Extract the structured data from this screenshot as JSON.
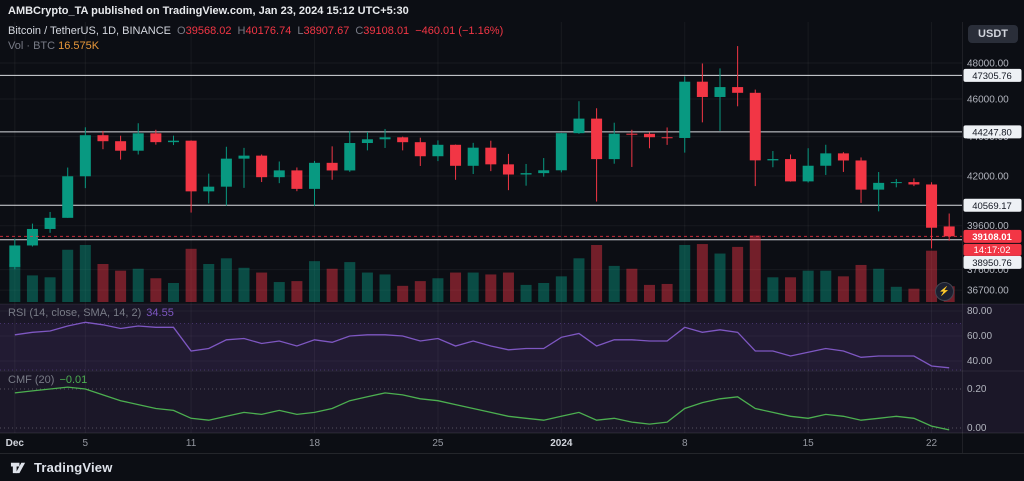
{
  "header": {
    "attribution": "AMBCrypto_TA published on TradingView.com, Jan 23, 2024 15:12 UTC+5:30"
  },
  "toolbar": {
    "currency": "USDT"
  },
  "legend": {
    "symbol": "Bitcoin / TetherUS, 1D, BINANCE",
    "o_label": "O",
    "o": "39568.02",
    "h_label": "H",
    "h": "40176.74",
    "l_label": "L",
    "l": "38907.67",
    "c_label": "C",
    "c": "39108.01",
    "change": "−460.01 (−1.16%)",
    "volume_label": "Vol · BTC",
    "volume_value": "16.575K",
    "rsi_label": "RSI (14, close, SMA, 14, 2)",
    "rsi_value": "34.55",
    "cmf_label": "CMF (20)",
    "cmf_value": "−0.01"
  },
  "footer": {
    "brand": "TradingView"
  },
  "colors": {
    "up": "#089981",
    "down": "#f23645",
    "rsi_line": "#7e57c2",
    "cmf_line": "#4caf50",
    "volume_value": "#e8983a",
    "level_line": "#eef1f5"
  },
  "chart_data": {
    "type": "candlestick",
    "title": "Bitcoin / TetherUS, 1D, BINANCE",
    "scale": "log",
    "ylim": [
      35400,
      49100
    ],
    "y_ticks": [
      48000,
      46000,
      44000,
      42000,
      39600,
      37600,
      36700
    ],
    "levels": [
      47305.76,
      44247.8,
      40569.17,
      38950.76
    ],
    "last_price": 39108.01,
    "countdown": "14:17:02",
    "x_ticks": [
      {
        "label": "Dec",
        "index": 0,
        "major": true
      },
      {
        "label": "5",
        "index": 4,
        "major": false
      },
      {
        "label": "11",
        "index": 10,
        "major": false
      },
      {
        "label": "18",
        "index": 17,
        "major": false
      },
      {
        "label": "25",
        "index": 24,
        "major": false
      },
      {
        "label": "2024",
        "index": 31,
        "major": true
      },
      {
        "label": "8",
        "index": 38,
        "major": false
      },
      {
        "label": "15",
        "index": 45,
        "major": false
      },
      {
        "label": "22",
        "index": 52,
        "major": false
      }
    ],
    "dates": [
      "Dec 1",
      "Dec 2",
      "Dec 3",
      "Dec 4",
      "Dec 5",
      "Dec 6",
      "Dec 7",
      "Dec 8",
      "Dec 9",
      "Dec 10",
      "Dec 11",
      "Dec 12",
      "Dec 13",
      "Dec 14",
      "Dec 15",
      "Dec 16",
      "Dec 17",
      "Dec 18",
      "Dec 19",
      "Dec 20",
      "Dec 21",
      "Dec 22",
      "Dec 23",
      "Dec 24",
      "Dec 25",
      "Dec 26",
      "Dec 27",
      "Dec 28",
      "Dec 29",
      "Dec 30",
      "Dec 31",
      "Jan 1",
      "Jan 2",
      "Jan 3",
      "Jan 4",
      "Jan 5",
      "Jan 6",
      "Jan 7",
      "Jan 8",
      "Jan 9",
      "Jan 10",
      "Jan 11",
      "Jan 12",
      "Jan 13",
      "Jan 14",
      "Jan 15",
      "Jan 16",
      "Jan 17",
      "Jan 18",
      "Jan 19",
      "Jan 20",
      "Jan 21",
      "Jan 22",
      "Jan 23"
    ],
    "open": [
      37718,
      38688,
      39450,
      39972,
      41985,
      44073,
      43762,
      43273,
      44171,
      43713,
      43789,
      41243,
      41472,
      42869,
      43022,
      41940,
      42278,
      41364,
      42657,
      42275,
      43668,
      43861,
      43964,
      43711,
      42991,
      43576,
      42508,
      43428,
      42581,
      42072,
      42141,
      42283,
      44179,
      44946,
      42845,
      44151,
      44145,
      43968,
      43929,
      46951,
      46110,
      46653,
      46338,
      42782,
      42847,
      41732,
      42511,
      43137,
      42776,
      41327,
      41659,
      41696,
      41580,
      39568.02
    ],
    "high": [
      38999,
      39700,
      40250,
      42420,
      44488,
      44297,
      44047,
      44700,
      44358,
      44049,
      43804,
      42115,
      43475,
      43420,
      43080,
      42724,
      42424,
      42755,
      43497,
      44283,
      44242,
      44399,
      44000,
      43945,
      43804,
      43592,
      43677,
      43787,
      43111,
      42600,
      42899,
      44184,
      45879,
      45500,
      44729,
      44357,
      44214,
      44480,
      47248,
      47972,
      47695,
      48969,
      46515,
      43257,
      43079,
      43400,
      43578,
      43198,
      42930,
      42196,
      41852,
      41881,
      41689,
      40176.74
    ],
    "low": [
      37615,
      38641,
      39270,
      39972,
      41400,
      43350,
      42821,
      43081,
      43584,
      43563,
      40222,
      40660,
      40555,
      41415,
      41700,
      41645,
      41252,
      40542,
      41811,
      42206,
      43291,
      43413,
      43291,
      42500,
      42745,
      41811,
      42098,
      42241,
      41300,
      41520,
      41965,
      42180,
      44148,
      40750,
      42613,
      42450,
      43397,
      43572,
      43175,
      44748,
      44300,
      45606,
      41500,
      42436,
      41720,
      41675,
      42050,
      42201,
      40683,
      40280,
      41440,
      41500,
      38555,
      38907.67
    ],
    "close": [
      38688,
      39450,
      39972,
      41985,
      44073,
      43762,
      43273,
      44171,
      43713,
      43789,
      41243,
      41472,
      42869,
      43022,
      41940,
      42278,
      41364,
      42657,
      42275,
      43668,
      43861,
      43964,
      43711,
      42991,
      43576,
      42508,
      43428,
      42581,
      42072,
      42141,
      42283,
      44179,
      44946,
      42845,
      44151,
      44145,
      43968,
      43929,
      46951,
      46110,
      46653,
      46338,
      42782,
      42847,
      41732,
      42511,
      43137,
      42776,
      41327,
      41659,
      41696,
      41580,
      39507,
      39108.01
    ],
    "volume_k": [
      40,
      28,
      26,
      55,
      60,
      40,
      33,
      35,
      25,
      20,
      56,
      40,
      46,
      36,
      31,
      21,
      22,
      43,
      35,
      42,
      31,
      29,
      17,
      22,
      25,
      31,
      31,
      29,
      31,
      18,
      20,
      27,
      46,
      60,
      38,
      35,
      18,
      19,
      60,
      61,
      51,
      58,
      70,
      26,
      26,
      33,
      33,
      27,
      39,
      35,
      16,
      14,
      54,
      16.575
    ],
    "indicators": [
      {
        "type": "line",
        "name": "RSI (14, close, SMA, 14, 2)",
        "last": 34.55,
        "y_ticks": [
          80,
          60,
          40
        ],
        "band": [
          70,
          30
        ],
        "values": [
          61,
          63,
          64,
          68,
          71,
          69,
          66,
          68,
          67,
          67,
          48,
          50,
          57,
          58,
          54,
          56,
          52,
          57,
          55,
          60,
          61,
          61,
          60,
          56,
          58,
          52,
          56,
          52,
          49,
          50,
          50,
          59,
          62,
          52,
          57,
          57,
          56,
          56,
          67,
          63,
          65,
          63,
          48,
          48,
          44,
          47,
          50,
          48,
          43,
          44,
          44,
          44,
          36,
          34.55
        ]
      },
      {
        "type": "line",
        "name": "CMF (20)",
        "last": -0.01,
        "y_ticks": [
          0.2,
          0.0
        ],
        "values": [
          0.18,
          0.19,
          0.2,
          0.21,
          0.2,
          0.17,
          0.14,
          0.12,
          0.1,
          0.09,
          0.05,
          0.04,
          0.06,
          0.08,
          0.07,
          0.09,
          0.07,
          0.08,
          0.1,
          0.14,
          0.16,
          0.18,
          0.17,
          0.15,
          0.14,
          0.12,
          0.1,
          0.08,
          0.06,
          0.05,
          0.04,
          0.06,
          0.08,
          0.04,
          0.05,
          0.03,
          0.02,
          0.03,
          0.1,
          0.13,
          0.15,
          0.16,
          0.1,
          0.08,
          0.06,
          0.05,
          0.07,
          0.06,
          0.04,
          0.05,
          0.06,
          0.05,
          0.01,
          -0.01
        ]
      }
    ]
  }
}
